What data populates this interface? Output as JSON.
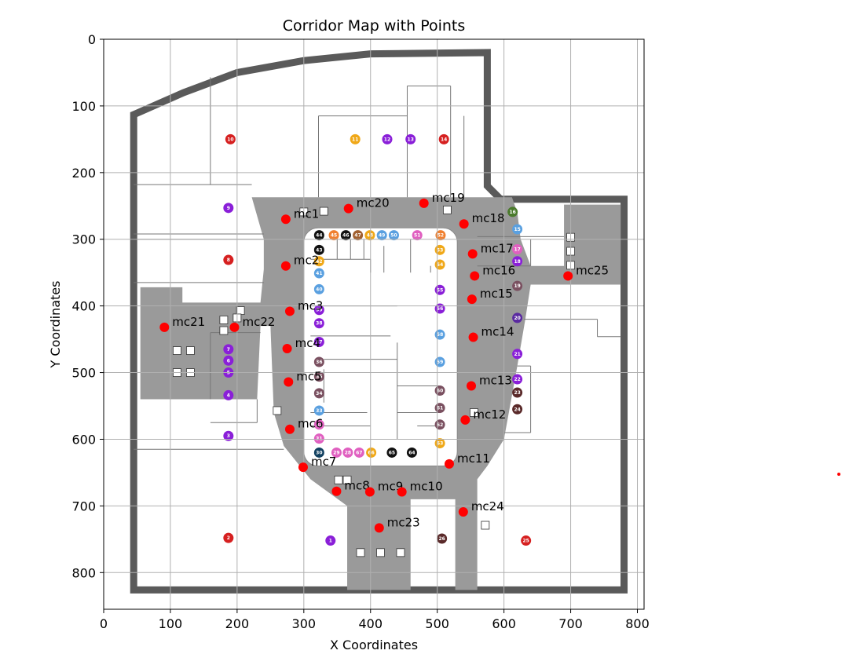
{
  "chart_data": {
    "type": "scatter",
    "title": "Corridor Map with Points",
    "xlabel": "X Coordinates",
    "ylabel": "Y Coordinates",
    "xlim": [
      0,
      810
    ],
    "ylim": [
      855,
      0
    ],
    "y_inverted": true,
    "grid": true,
    "xticks": [
      0,
      100,
      200,
      300,
      400,
      500,
      600,
      700,
      800
    ],
    "yticks": [
      0,
      100,
      200,
      300,
      400,
      500,
      600,
      700,
      800
    ],
    "marker_color": "#ff0000",
    "points": [
      {
        "label": "mc1",
        "x": 273,
        "y": 270
      },
      {
        "label": "mc20",
        "x": 367,
        "y": 254
      },
      {
        "label": "mc19",
        "x": 480,
        "y": 246
      },
      {
        "label": "mc18",
        "x": 540,
        "y": 277
      },
      {
        "label": "mc17",
        "x": 553,
        "y": 322
      },
      {
        "label": "mc16",
        "x": 556,
        "y": 355
      },
      {
        "label": "mc25",
        "x": 696,
        "y": 355
      },
      {
        "label": "mc15",
        "x": 552,
        "y": 390
      },
      {
        "label": "mc2",
        "x": 273,
        "y": 340
      },
      {
        "label": "mc3",
        "x": 279,
        "y": 408
      },
      {
        "label": "mc21",
        "x": 91,
        "y": 432
      },
      {
        "label": "mc22",
        "x": 196,
        "y": 432
      },
      {
        "label": "mc14",
        "x": 554,
        "y": 447
      },
      {
        "label": "mc4",
        "x": 275,
        "y": 464
      },
      {
        "label": "mc5",
        "x": 277,
        "y": 514
      },
      {
        "label": "mc13",
        "x": 551,
        "y": 520
      },
      {
        "label": "mc12",
        "x": 542,
        "y": 571
      },
      {
        "label": "mc6",
        "x": 279,
        "y": 585
      },
      {
        "label": "mc11",
        "x": 518,
        "y": 637
      },
      {
        "label": "mc7",
        "x": 299,
        "y": 642
      },
      {
        "label": "mc8",
        "x": 349,
        "y": 678
      },
      {
        "label": "mc9",
        "x": 399,
        "y": 679
      },
      {
        "label": "mc10",
        "x": 447,
        "y": 679
      },
      {
        "label": "mc24",
        "x": 539,
        "y": 709
      },
      {
        "label": "mc23",
        "x": 413,
        "y": 733
      }
    ],
    "background_map": {
      "room_badges": [
        {
          "n": "10",
          "x": 190,
          "y": 150,
          "c": "#d62020"
        },
        {
          "n": "11",
          "x": 377,
          "y": 150,
          "c": "#f0a818"
        },
        {
          "n": "12",
          "x": 425,
          "y": 150,
          "c": "#8a1fd8"
        },
        {
          "n": "13",
          "x": 460,
          "y": 150,
          "c": "#8a1fd8"
        },
        {
          "n": "14",
          "x": 510,
          "y": 150,
          "c": "#d62020"
        },
        {
          "n": "9",
          "x": 187,
          "y": 253,
          "c": "#8a1fd8"
        },
        {
          "n": "8",
          "x": 187,
          "y": 331,
          "c": "#d62020"
        },
        {
          "n": "7",
          "x": 187,
          "y": 465,
          "c": "#8a1fd8"
        },
        {
          "n": "6",
          "x": 187,
          "y": 482,
          "c": "#8a1fd8"
        },
        {
          "n": "5",
          "x": 187,
          "y": 500,
          "c": "#8a1fd8"
        },
        {
          "n": "4",
          "x": 187,
          "y": 534,
          "c": "#8a1fd8"
        },
        {
          "n": "3",
          "x": 187,
          "y": 595,
          "c": "#8a1fd8"
        },
        {
          "n": "2",
          "x": 187,
          "y": 748,
          "c": "#d62020"
        },
        {
          "n": "1",
          "x": 340,
          "y": 752,
          "c": "#8a1fd8"
        },
        {
          "n": "16",
          "x": 613,
          "y": 259,
          "c": "#4a7a2c"
        },
        {
          "n": "15",
          "x": 620,
          "y": 285,
          "c": "#5aa0e0"
        },
        {
          "n": "17",
          "x": 620,
          "y": 315,
          "c": "#e060c0"
        },
        {
          "n": "18",
          "x": 620,
          "y": 333,
          "c": "#8a1fd8"
        },
        {
          "n": "19",
          "x": 620,
          "y": 370,
          "c": "#7a5060"
        },
        {
          "n": "20",
          "x": 620,
          "y": 418,
          "c": "#5a2aa0"
        },
        {
          "n": "21",
          "x": 620,
          "y": 472,
          "c": "#8a1fd8"
        },
        {
          "n": "22",
          "x": 620,
          "y": 510,
          "c": "#8a1fd8"
        },
        {
          "n": "23",
          "x": 620,
          "y": 530,
          "c": "#5a2a2a"
        },
        {
          "n": "24",
          "x": 620,
          "y": 555,
          "c": "#5a2a2a"
        },
        {
          "n": "25",
          "x": 633,
          "y": 752,
          "c": "#d62020"
        },
        {
          "n": "26",
          "x": 507,
          "y": 749,
          "c": "#5a2a2a"
        },
        {
          "n": "44",
          "x": 323,
          "y": 294,
          "c": "#111111"
        },
        {
          "n": "45",
          "x": 345,
          "y": 294,
          "c": "#f08030"
        },
        {
          "n": "46",
          "x": 363,
          "y": 294,
          "c": "#111111"
        },
        {
          "n": "47",
          "x": 381,
          "y": 294,
          "c": "#a06030"
        },
        {
          "n": "48",
          "x": 399,
          "y": 294,
          "c": "#f0a818"
        },
        {
          "n": "49",
          "x": 417,
          "y": 294,
          "c": "#5aa0e0"
        },
        {
          "n": "50",
          "x": 435,
          "y": 294,
          "c": "#5aa0e0"
        },
        {
          "n": "51",
          "x": 470,
          "y": 294,
          "c": "#e060c0"
        },
        {
          "n": "52",
          "x": 505,
          "y": 294,
          "c": "#f08030"
        },
        {
          "n": "43",
          "x": 323,
          "y": 316,
          "c": "#111111"
        },
        {
          "n": "42",
          "x": 323,
          "y": 333,
          "c": "#f0a818"
        },
        {
          "n": "41",
          "x": 323,
          "y": 351,
          "c": "#5aa0e0"
        },
        {
          "n": "40",
          "x": 323,
          "y": 375,
          "c": "#5aa0e0"
        },
        {
          "n": "39",
          "x": 323,
          "y": 406,
          "c": "#8a1fd8"
        },
        {
          "n": "38",
          "x": 323,
          "y": 426,
          "c": "#8a1fd8"
        },
        {
          "n": "37",
          "x": 323,
          "y": 454,
          "c": "#8a1fd8"
        },
        {
          "n": "36",
          "x": 323,
          "y": 484,
          "c": "#7a5060"
        },
        {
          "n": "35",
          "x": 323,
          "y": 506,
          "c": "#7a5060"
        },
        {
          "n": "34",
          "x": 323,
          "y": 531,
          "c": "#7a5060"
        },
        {
          "n": "33",
          "x": 323,
          "y": 557,
          "c": "#5aa0e0"
        },
        {
          "n": "32",
          "x": 323,
          "y": 578,
          "c": "#e060c0"
        },
        {
          "n": "31",
          "x": 323,
          "y": 599,
          "c": "#e060c0"
        },
        {
          "n": "30",
          "x": 323,
          "y": 620,
          "c": "#114060"
        },
        {
          "n": "29",
          "x": 349,
          "y": 620,
          "c": "#e060c0"
        },
        {
          "n": "28",
          "x": 366,
          "y": 620,
          "c": "#e060c0"
        },
        {
          "n": "67",
          "x": 383,
          "y": 620,
          "c": "#e060c0"
        },
        {
          "n": "66",
          "x": 401,
          "y": 620,
          "c": "#f0a818"
        },
        {
          "n": "65",
          "x": 432,
          "y": 620,
          "c": "#111111"
        },
        {
          "n": "64",
          "x": 462,
          "y": 620,
          "c": "#111111"
        },
        {
          "n": "53",
          "x": 504,
          "y": 316,
          "c": "#f0a818"
        },
        {
          "n": "54",
          "x": 504,
          "y": 338,
          "c": "#f0a818"
        },
        {
          "n": "55",
          "x": 504,
          "y": 376,
          "c": "#8a1fd8"
        },
        {
          "n": "56",
          "x": 504,
          "y": 404,
          "c": "#8a1fd8"
        },
        {
          "n": "58",
          "x": 504,
          "y": 443,
          "c": "#5aa0e0"
        },
        {
          "n": "59",
          "x": 504,
          "y": 484,
          "c": "#5aa0e0"
        },
        {
          "n": "60",
          "x": 504,
          "y": 527,
          "c": "#7a5060"
        },
        {
          "n": "61",
          "x": 504,
          "y": 553,
          "c": "#7a5060"
        },
        {
          "n": "62",
          "x": 504,
          "y": 578,
          "c": "#7a5060"
        },
        {
          "n": "63",
          "x": 504,
          "y": 606,
          "c": "#f0a818"
        }
      ]
    }
  }
}
